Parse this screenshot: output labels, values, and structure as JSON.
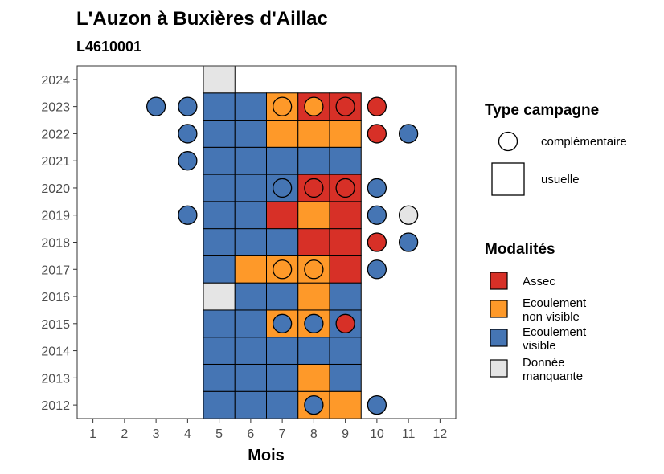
{
  "chart_data": {
    "type": "heatmap",
    "title": "L'Auzon à Buxières d'Aillac",
    "subtitle": "L4610001",
    "xlabel": "Mois",
    "ylabel": "",
    "x_ticks": [
      1,
      2,
      3,
      4,
      5,
      6,
      7,
      8,
      9,
      10,
      11,
      12
    ],
    "y_ticks": [
      2012,
      2013,
      2014,
      2015,
      2016,
      2017,
      2018,
      2019,
      2020,
      2021,
      2022,
      2023,
      2024
    ],
    "colors": {
      "Assec": "#d73027",
      "Ecoulement non visible": "#fe9929",
      "Ecoulement visible": "#4575b4",
      "Donnée manquante": "#e5e5e5"
    },
    "legend_shape": {
      "title": "Type campagne",
      "items": [
        {
          "shape": "circle",
          "label": "complémentaire"
        },
        {
          "shape": "square",
          "label": "usuelle"
        }
      ]
    },
    "legend_fill": {
      "title": "Modalités",
      "items": [
        {
          "key": "Assec",
          "lines": [
            "Assec"
          ]
        },
        {
          "key": "Ecoulement non visible",
          "lines": [
            "Ecoulement",
            "non visible"
          ]
        },
        {
          "key": "Ecoulement visible",
          "lines": [
            "Ecoulement",
            "visible"
          ]
        },
        {
          "key": "Donnée manquante",
          "lines": [
            "Donnée",
            "manquante"
          ]
        }
      ]
    },
    "usuelle": [
      {
        "year": 2012,
        "months": {
          "5": "Ecoulement visible",
          "6": "Ecoulement visible",
          "7": "Ecoulement visible",
          "8": "Ecoulement non visible",
          "9": "Ecoulement non visible"
        }
      },
      {
        "year": 2013,
        "months": {
          "5": "Ecoulement visible",
          "6": "Ecoulement visible",
          "7": "Ecoulement visible",
          "8": "Ecoulement non visible",
          "9": "Ecoulement visible"
        }
      },
      {
        "year": 2014,
        "months": {
          "5": "Ecoulement visible",
          "6": "Ecoulement visible",
          "7": "Ecoulement visible",
          "8": "Ecoulement visible",
          "9": "Ecoulement visible"
        }
      },
      {
        "year": 2015,
        "months": {
          "5": "Ecoulement visible",
          "6": "Ecoulement visible",
          "7": "Ecoulement non visible",
          "8": "Ecoulement non visible",
          "9": "Ecoulement visible"
        }
      },
      {
        "year": 2016,
        "months": {
          "5": "Donnée manquante",
          "6": "Ecoulement visible",
          "7": "Ecoulement visible",
          "8": "Ecoulement non visible",
          "9": "Ecoulement visible"
        }
      },
      {
        "year": 2017,
        "months": {
          "5": "Ecoulement visible",
          "6": "Ecoulement non visible",
          "7": "Ecoulement non visible",
          "8": "Ecoulement non visible",
          "9": "Assec"
        }
      },
      {
        "year": 2018,
        "months": {
          "5": "Ecoulement visible",
          "6": "Ecoulement visible",
          "7": "Ecoulement visible",
          "8": "Assec",
          "9": "Assec"
        }
      },
      {
        "year": 2019,
        "months": {
          "5": "Ecoulement visible",
          "6": "Ecoulement visible",
          "7": "Assec",
          "8": "Ecoulement non visible",
          "9": "Assec"
        }
      },
      {
        "year": 2020,
        "months": {
          "5": "Ecoulement visible",
          "6": "Ecoulement visible",
          "7": "Ecoulement visible",
          "8": "Assec",
          "9": "Assec"
        }
      },
      {
        "year": 2021,
        "months": {
          "5": "Ecoulement visible",
          "6": "Ecoulement visible",
          "7": "Ecoulement visible",
          "8": "Ecoulement visible",
          "9": "Ecoulement visible"
        }
      },
      {
        "year": 2022,
        "months": {
          "5": "Ecoulement visible",
          "6": "Ecoulement visible",
          "7": "Ecoulement non visible",
          "8": "Ecoulement non visible",
          "9": "Ecoulement non visible"
        }
      },
      {
        "year": 2023,
        "months": {
          "5": "Ecoulement visible",
          "6": "Ecoulement visible",
          "7": "Ecoulement non visible",
          "8": "Assec",
          "9": "Assec"
        }
      },
      {
        "year": 2024,
        "months": {
          "5": "Donnée manquante"
        }
      }
    ],
    "complementaire": [
      {
        "year": 2012,
        "month": 8,
        "value": "Ecoulement visible"
      },
      {
        "year": 2012,
        "month": 10,
        "value": "Ecoulement visible"
      },
      {
        "year": 2015,
        "month": 7,
        "value": "Ecoulement visible"
      },
      {
        "year": 2015,
        "month": 8,
        "value": "Ecoulement visible"
      },
      {
        "year": 2015,
        "month": 9,
        "value": "Assec"
      },
      {
        "year": 2017,
        "month": 7,
        "value": "Ecoulement non visible"
      },
      {
        "year": 2017,
        "month": 8,
        "value": "Ecoulement non visible"
      },
      {
        "year": 2017,
        "month": 10,
        "value": "Ecoulement visible"
      },
      {
        "year": 2018,
        "month": 10,
        "value": "Assec"
      },
      {
        "year": 2018,
        "month": 11,
        "value": "Ecoulement visible"
      },
      {
        "year": 2019,
        "month": 4,
        "value": "Ecoulement visible"
      },
      {
        "year": 2019,
        "month": 10,
        "value": "Ecoulement visible"
      },
      {
        "year": 2019,
        "month": 11,
        "value": "Donnée manquante"
      },
      {
        "year": 2020,
        "month": 7,
        "value": "Ecoulement visible"
      },
      {
        "year": 2020,
        "month": 8,
        "value": "Assec"
      },
      {
        "year": 2020,
        "month": 9,
        "value": "Assec"
      },
      {
        "year": 2020,
        "month": 10,
        "value": "Ecoulement visible"
      },
      {
        "year": 2021,
        "month": 4,
        "value": "Ecoulement visible"
      },
      {
        "year": 2022,
        "month": 4,
        "value": "Ecoulement visible"
      },
      {
        "year": 2022,
        "month": 10,
        "value": "Assec"
      },
      {
        "year": 2022,
        "month": 11,
        "value": "Ecoulement visible"
      },
      {
        "year": 2023,
        "month": 3,
        "value": "Ecoulement visible"
      },
      {
        "year": 2023,
        "month": 4,
        "value": "Ecoulement visible"
      },
      {
        "year": 2023,
        "month": 7,
        "value": "Ecoulement non visible"
      },
      {
        "year": 2023,
        "month": 8,
        "value": "Ecoulement non visible"
      },
      {
        "year": 2023,
        "month": 9,
        "value": "Assec"
      },
      {
        "year": 2023,
        "month": 10,
        "value": "Assec"
      }
    ]
  }
}
